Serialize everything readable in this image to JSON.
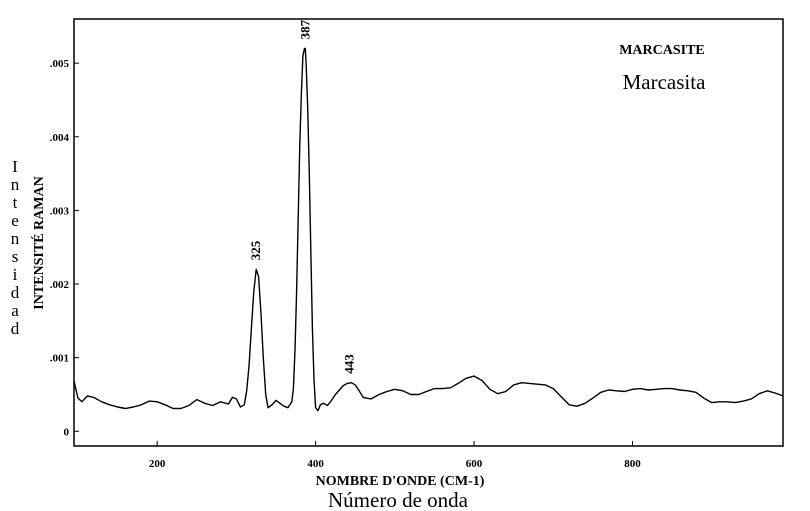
{
  "chart_data": {
    "type": "line",
    "title": "MARCASITE",
    "subtitle": "Marcasita",
    "xlabel": "NOMBRE D'ONDE (CM-1)",
    "xlabel_sub": "Número de onda",
    "ylabel": "INTENSITÉ RAMAN",
    "ylabel_sub": "Intensidad",
    "xlim": [
      95,
      990
    ],
    "ylim": [
      -0.0002,
      0.0056
    ],
    "x_ticks": [
      200,
      400,
      600,
      800
    ],
    "y_ticks": [
      0,
      0.001,
      0.002,
      0.003,
      0.004,
      0.005
    ],
    "x_tick_labels": [
      "200",
      "400",
      "600",
      "800"
    ],
    "y_tick_labels": [
      "0",
      ".001",
      ".002",
      ".003",
      ".004",
      ".005"
    ],
    "grid": false,
    "annotations": [
      {
        "text": "325",
        "x": 325,
        "y": 0.0022
      },
      {
        "text": "387",
        "x": 387,
        "y": 0.0052
      },
      {
        "text": "443",
        "x": 443,
        "y": 0.00066
      }
    ],
    "series": [
      {
        "x": [
          95,
          100,
          105,
          112,
          120,
          130,
          140,
          150,
          160,
          170,
          180,
          190,
          200,
          210,
          220,
          230,
          240,
          250,
          260,
          270,
          280,
          290,
          295,
          300,
          305,
          310,
          313,
          316,
          319,
          322,
          325,
          328,
          331,
          334,
          337,
          340,
          345,
          350,
          355,
          360,
          365,
          370,
          372,
          374,
          376,
          378,
          380,
          382,
          384,
          386,
          387,
          388,
          390,
          392,
          394,
          396,
          398,
          400,
          403,
          406,
          410,
          415,
          420,
          425,
          430,
          435,
          440,
          445,
          450,
          455,
          460,
          470,
          480,
          490,
          500,
          510,
          520,
          530,
          540,
          550,
          560,
          570,
          580,
          590,
          600,
          610,
          620,
          630,
          640,
          650,
          660,
          670,
          680,
          690,
          700,
          710,
          720,
          730,
          740,
          750,
          760,
          770,
          780,
          790,
          800,
          810,
          820,
          830,
          840,
          850,
          860,
          870,
          880,
          890,
          900,
          910,
          920,
          930,
          940,
          950,
          960,
          970,
          980,
          990
        ],
        "values": [
          0.00068,
          0.00045,
          0.0004,
          0.00048,
          0.00046,
          0.0004,
          0.00036,
          0.00033,
          0.00031,
          0.00033,
          0.00036,
          0.00041,
          0.0004,
          0.00036,
          0.00031,
          0.00031,
          0.00035,
          0.00043,
          0.00038,
          0.00035,
          0.0004,
          0.00037,
          0.00046,
          0.00044,
          0.00033,
          0.00036,
          0.00055,
          0.0009,
          0.0014,
          0.0019,
          0.0022,
          0.0021,
          0.0016,
          0.001,
          0.0005,
          0.00032,
          0.00036,
          0.00042,
          0.00038,
          0.00034,
          0.00032,
          0.0004,
          0.00058,
          0.0011,
          0.0019,
          0.0029,
          0.0039,
          0.0046,
          0.0051,
          0.0052,
          0.0052,
          0.005,
          0.0044,
          0.0035,
          0.0024,
          0.0014,
          0.0007,
          0.00032,
          0.00028,
          0.00036,
          0.00038,
          0.00035,
          0.00042,
          0.0005,
          0.00056,
          0.00062,
          0.00065,
          0.00066,
          0.00063,
          0.00055,
          0.00046,
          0.00044,
          0.0005,
          0.00054,
          0.00057,
          0.00055,
          0.0005,
          0.0005,
          0.00054,
          0.00058,
          0.00058,
          0.00059,
          0.00065,
          0.00072,
          0.00075,
          0.00069,
          0.00057,
          0.00051,
          0.00054,
          0.00063,
          0.00066,
          0.00065,
          0.00064,
          0.00063,
          0.00058,
          0.00047,
          0.00036,
          0.00034,
          0.00038,
          0.00045,
          0.00053,
          0.00056,
          0.00055,
          0.00054,
          0.00057,
          0.00058,
          0.00056,
          0.00057,
          0.00058,
          0.00058,
          0.00056,
          0.00055,
          0.00053,
          0.00045,
          0.00039,
          0.0004,
          0.0004,
          0.00039,
          0.00041,
          0.00044,
          0.00051,
          0.00055,
          0.00052,
          0.00048
        ]
      }
    ]
  }
}
